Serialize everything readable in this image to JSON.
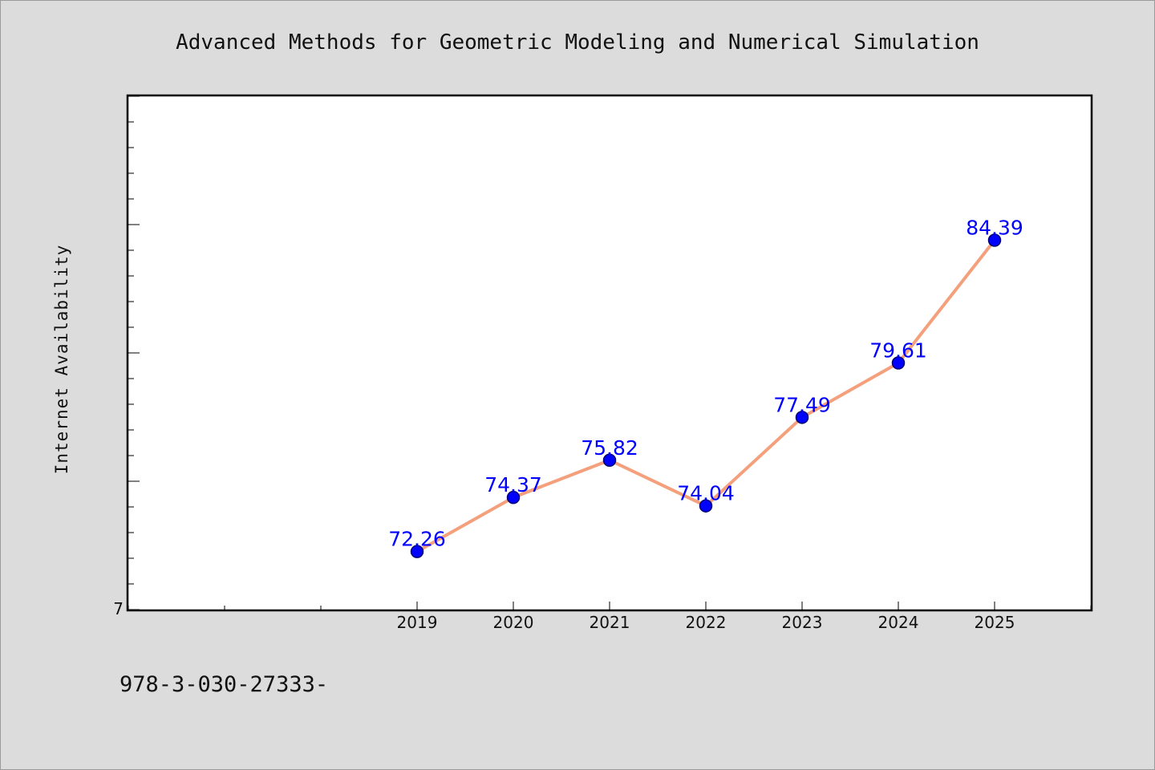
{
  "chart_data": {
    "type": "line",
    "title": "Advanced Methods for Geometric Modeling and Numerical Simulation",
    "xlabel": "",
    "ylabel": "Internet Availability",
    "categories": [
      "2019",
      "2020",
      "2021",
      "2022",
      "2023",
      "2024",
      "2025"
    ],
    "series": [
      {
        "values": [
          72.26,
          74.37,
          75.82,
          74.04,
          77.49,
          79.61,
          84.39
        ]
      }
    ],
    "data_labels": [
      "72.26",
      "74.37",
      "75.82",
      "74.04",
      "77.49",
      "79.61",
      "84.39"
    ],
    "ylim": [
      70,
      90
    ],
    "y_tick_labels": [
      "7"
    ],
    "x_range": [
      2016,
      2026
    ],
    "grid": false,
    "footnote": "978-3-030-27333-",
    "colors": {
      "line": "#f4a07c",
      "marker": "#0000ff",
      "marker_edge": "#00006e",
      "data_label": "#0000ff",
      "background": "#dcdcdc",
      "plot_background": "#ffffff"
    }
  }
}
